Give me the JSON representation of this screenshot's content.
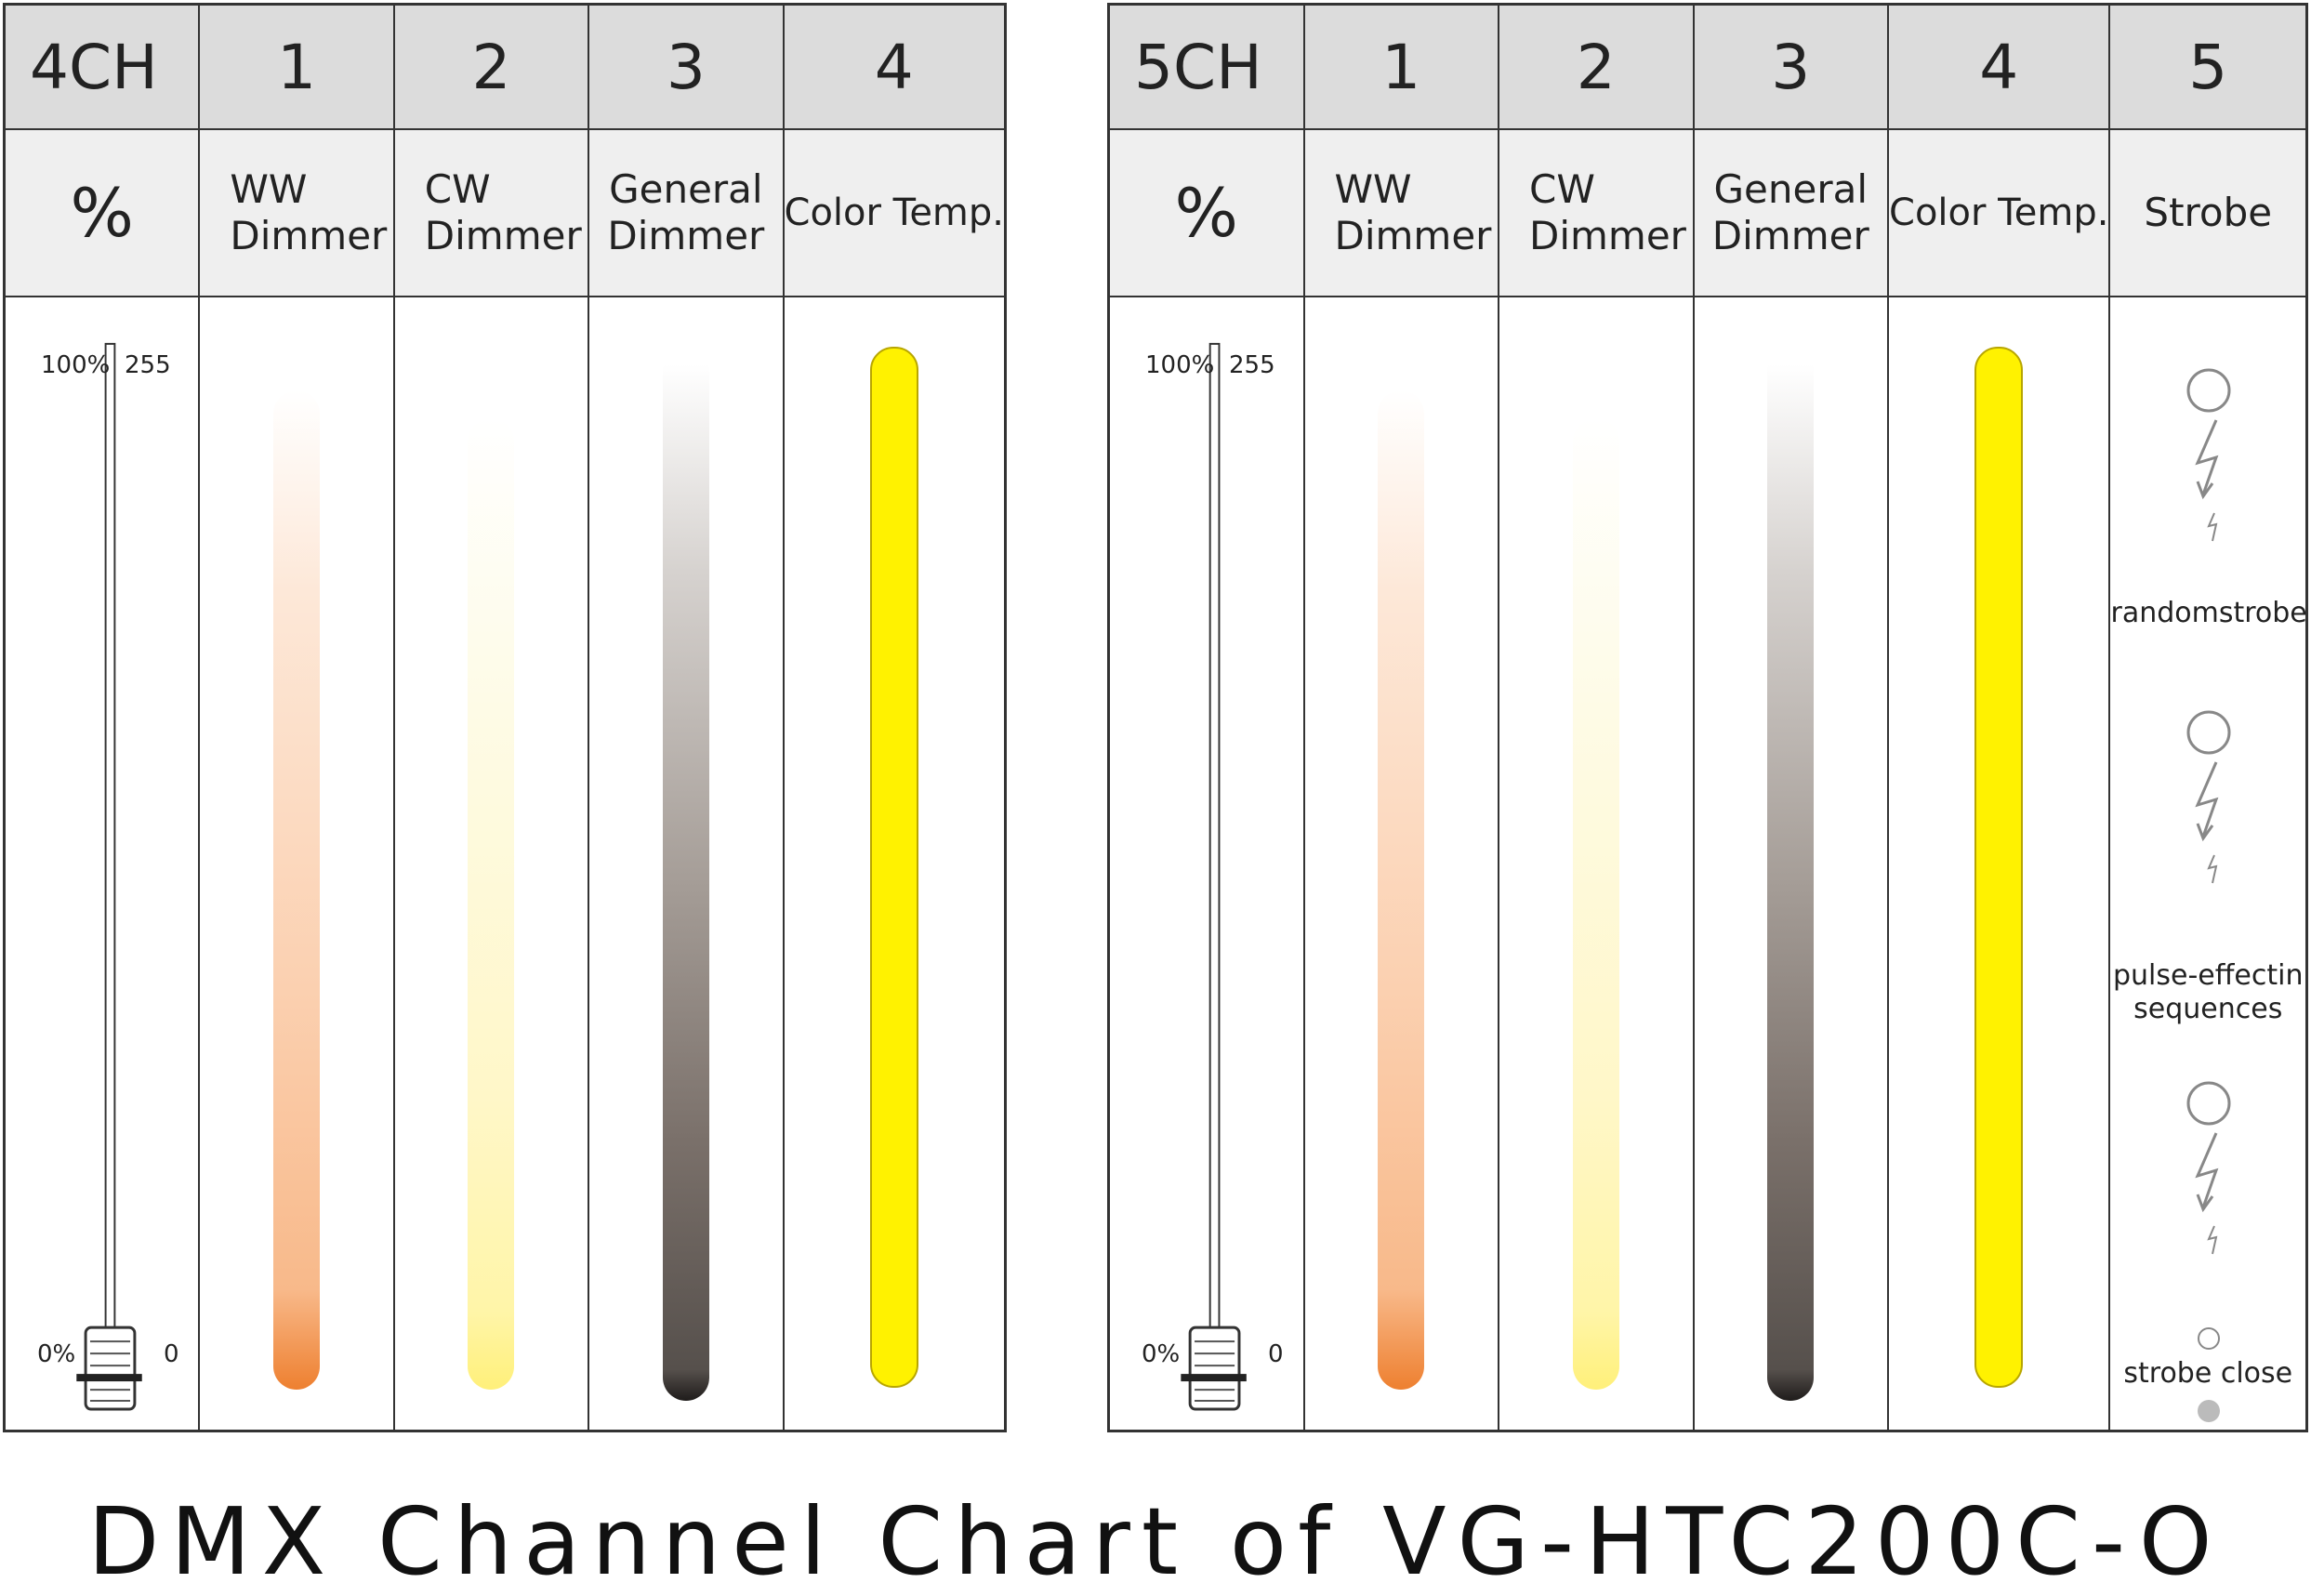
{
  "panels": [
    {
      "id": "4ch",
      "headers": [
        "4CH",
        "1",
        "2",
        "3",
        "4"
      ],
      "percent_symbol": "%",
      "subheaders": [
        [
          "WW",
          "Dimmer"
        ],
        [
          "CW",
          "Dimmer"
        ],
        [
          "General",
          "Dimmer"
        ],
        [
          "Color Temp."
        ]
      ],
      "fader": {
        "top_pct": "100%",
        "top_val": "255",
        "bottom_pct": "0%",
        "bottom_val": "0"
      }
    },
    {
      "id": "5ch",
      "headers": [
        "5CH",
        "1",
        "2",
        "3",
        "4",
        "5"
      ],
      "percent_symbol": "%",
      "subheaders": [
        [
          "WW",
          "Dimmer"
        ],
        [
          "CW",
          "Dimmer"
        ],
        [
          "General",
          "Dimmer"
        ],
        [
          "Color Temp."
        ],
        [
          "Strobe"
        ]
      ],
      "fader": {
        "top_pct": "100%",
        "top_val": "255",
        "bottom_pct": "0%",
        "bottom_val": "0"
      },
      "strobe_labels": [
        [
          "random",
          "strobe"
        ],
        [
          "pulse-effect",
          "in sequences"
        ],
        [
          "strobe close"
        ]
      ]
    }
  ],
  "title": "DMX  Channel  Chart  of  VG-HTC200C-O",
  "colors": {
    "ww_bottom": "#ee8030",
    "cw_bottom": "#fff07a",
    "general_bottom": "#1f1c1b",
    "color_temp": "#fff200"
  }
}
